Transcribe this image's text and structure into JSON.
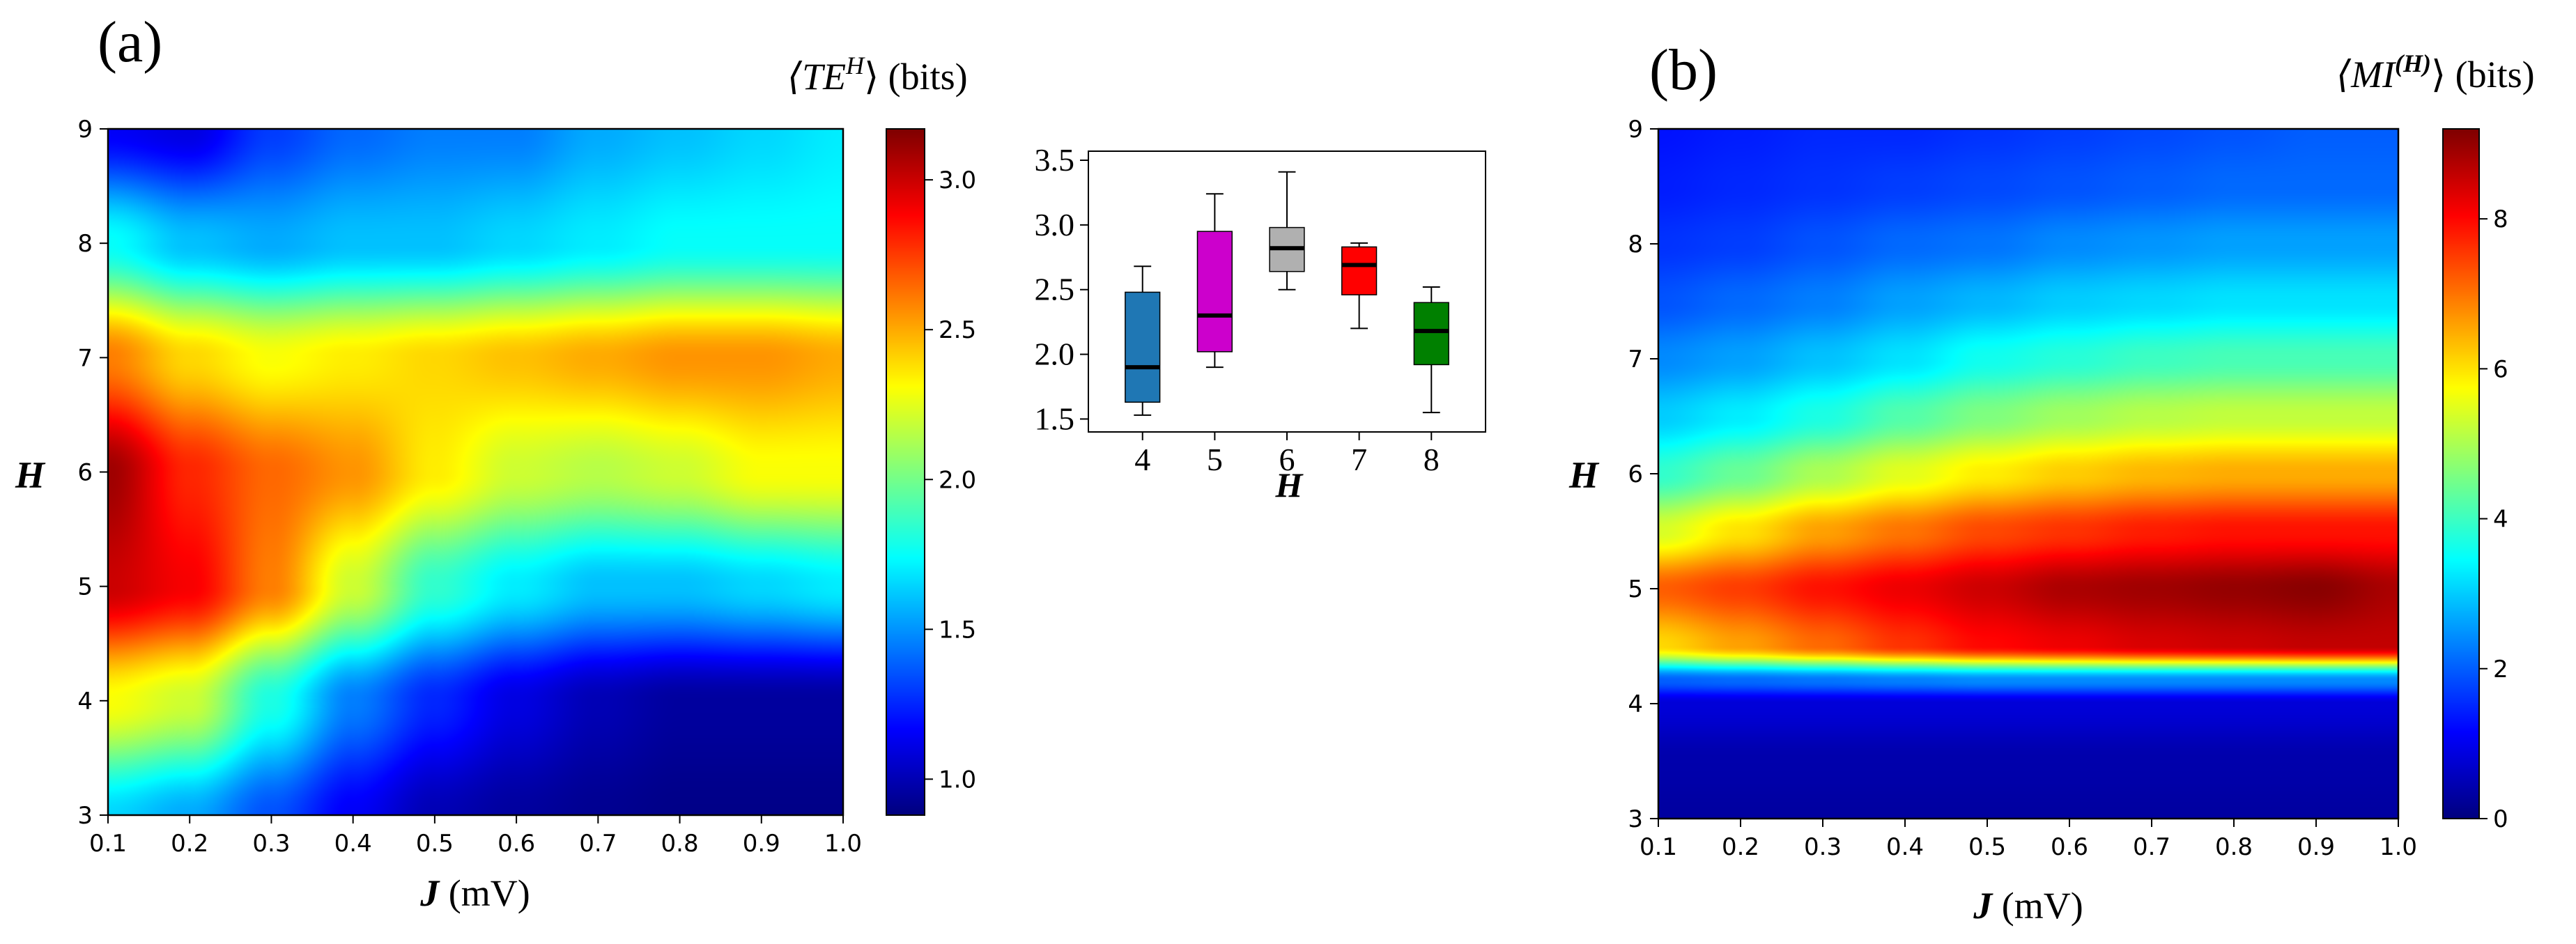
{
  "colors": {
    "jet": [
      "#00007f",
      "#0000ff",
      "#007fff",
      "#00ffff",
      "#7fff7f",
      "#ffff00",
      "#ff7f00",
      "#ff0000",
      "#7f0000"
    ],
    "box_fills": [
      "#1f77b4",
      "#cc00cc",
      "#b0b0b0",
      "#ff0000",
      "#008000"
    ]
  },
  "chart_data": [
    {
      "type": "heatmap",
      "panel_label": "(a)",
      "xlabel_var": "J",
      "xlabel_unit": " (mV)",
      "ylabel": "H",
      "x_ticks": [
        "0.1",
        "0.2",
        "0.3",
        "0.4",
        "0.5",
        "0.6",
        "0.7",
        "0.8",
        "0.9",
        "1.0"
      ],
      "y_ticks": [
        "3",
        "4",
        "5",
        "6",
        "7",
        "8",
        "9"
      ],
      "xlim": [
        0.1,
        1.0
      ],
      "ylim": [
        3,
        9
      ],
      "colorbar": {
        "label_main": "⟨TE",
        "label_sup": "H",
        "label_close": "⟩",
        "label_unit": " (bits)",
        "range": [
          0.88,
          3.17
        ],
        "ticks": [
          "1.0",
          "1.5",
          "2.0",
          "2.5",
          "3.0"
        ],
        "tick_values": [
          1.0,
          1.5,
          2.0,
          2.5,
          3.0
        ]
      },
      "grid_x": [
        0.1,
        0.2,
        0.3,
        0.4,
        0.5,
        0.6,
        0.7,
        0.8,
        0.9,
        1.0
      ],
      "grid_y": [
        3,
        4,
        5,
        6,
        7,
        8,
        9
      ],
      "values": [
        [
          1.65,
          1.55,
          1.35,
          1.15,
          1.0,
          0.95,
          0.92,
          0.9,
          0.9,
          0.9
        ],
        [
          2.3,
          2.2,
          1.8,
          1.45,
          1.25,
          1.1,
          1.0,
          0.95,
          0.95,
          0.95
        ],
        [
          3.0,
          2.9,
          2.6,
          2.2,
          1.85,
          1.7,
          1.6,
          1.6,
          1.65,
          1.7
        ],
        [
          3.1,
          2.8,
          2.65,
          2.55,
          2.35,
          2.2,
          2.15,
          2.2,
          2.3,
          2.3
        ],
        [
          2.6,
          2.4,
          2.3,
          2.35,
          2.4,
          2.45,
          2.5,
          2.55,
          2.55,
          2.5
        ],
        [
          1.75,
          1.6,
          1.55,
          1.6,
          1.6,
          1.65,
          1.7,
          1.75,
          1.75,
          1.75
        ],
        [
          1.15,
          1.1,
          1.3,
          1.4,
          1.45,
          1.45,
          1.55,
          1.6,
          1.65,
          1.7
        ]
      ]
    },
    {
      "type": "box",
      "xlabel": "H",
      "categories": [
        "4",
        "5",
        "6",
        "7",
        "8"
      ],
      "y_ticks": [
        "1.5",
        "2.0",
        "2.5",
        "3.0",
        "3.5"
      ],
      "ylim": [
        1.4,
        3.57
      ],
      "boxes": [
        {
          "min": 1.53,
          "q1": 1.63,
          "median": 1.9,
          "q3": 2.48,
          "max": 2.68
        },
        {
          "min": 1.9,
          "q1": 2.02,
          "median": 2.3,
          "q3": 2.95,
          "max": 3.24
        },
        {
          "min": 2.5,
          "q1": 2.64,
          "median": 2.82,
          "q3": 2.98,
          "max": 3.41
        },
        {
          "min": 2.2,
          "q1": 2.46,
          "median": 2.69,
          "q3": 2.83,
          "max": 2.86
        },
        {
          "min": 1.55,
          "q1": 1.92,
          "median": 2.18,
          "q3": 2.4,
          "max": 2.52
        }
      ]
    },
    {
      "type": "heatmap",
      "panel_label": "(b)",
      "xlabel_var": "J",
      "xlabel_unit": " (mV)",
      "ylabel": "H",
      "x_ticks": [
        "0.1",
        "0.2",
        "0.3",
        "0.4",
        "0.5",
        "0.6",
        "0.7",
        "0.8",
        "0.9",
        "1.0"
      ],
      "y_ticks": [
        "3",
        "4",
        "5",
        "6",
        "7",
        "8",
        "9"
      ],
      "xlim": [
        0.1,
        1.0
      ],
      "ylim": [
        3,
        9
      ],
      "colorbar": {
        "label_main": "⟨MI",
        "label_sup": "(H)",
        "label_close": "⟩",
        "label_unit": " (bits)",
        "range": [
          0,
          9.2
        ],
        "ticks": [
          "0",
          "2",
          "4",
          "6",
          "8"
        ],
        "tick_values": [
          0,
          2,
          4,
          6,
          8
        ]
      },
      "grid_x": [
        0.1,
        0.2,
        0.3,
        0.4,
        0.5,
        0.6,
        0.7,
        0.8,
        0.9,
        1.0
      ],
      "grid_y": [
        3,
        3.5,
        4,
        4.2,
        4.5,
        5,
        5.5,
        6,
        6.5,
        7,
        7.5,
        8,
        8.5,
        9
      ],
      "values": [
        [
          0.3,
          0.3,
          0.3,
          0.3,
          0.3,
          0.3,
          0.3,
          0.3,
          0.3,
          0.3
        ],
        [
          0.4,
          0.4,
          0.4,
          0.4,
          0.4,
          0.4,
          0.4,
          0.4,
          0.4,
          0.4
        ],
        [
          0.8,
          0.8,
          0.8,
          0.8,
          0.8,
          0.8,
          0.8,
          0.8,
          0.8,
          0.8
        ],
        [
          2.0,
          2.1,
          2.2,
          2.3,
          2.4,
          2.4,
          2.4,
          2.4,
          2.4,
          2.4
        ],
        [
          6.1,
          6.6,
          7.1,
          7.6,
          8.0,
          8.2,
          8.4,
          8.5,
          8.6,
          8.6
        ],
        [
          7.2,
          7.5,
          7.9,
          8.2,
          8.5,
          8.8,
          8.9,
          9.0,
          9.1,
          8.8
        ],
        [
          5.4,
          6.0,
          6.6,
          7.0,
          7.4,
          7.6,
          7.8,
          7.9,
          7.9,
          7.9
        ],
        [
          3.9,
          4.4,
          5.0,
          5.5,
          5.9,
          6.2,
          6.4,
          6.5,
          6.5,
          6.5
        ],
        [
          3.0,
          3.3,
          3.7,
          4.2,
          4.6,
          4.9,
          5.1,
          5.2,
          5.2,
          5.2
        ],
        [
          2.4,
          2.6,
          2.9,
          3.2,
          3.6,
          3.8,
          4.0,
          4.1,
          4.1,
          4.1
        ],
        [
          1.9,
          2.1,
          2.3,
          2.6,
          2.8,
          3.0,
          3.1,
          3.2,
          3.2,
          3.2
        ],
        [
          1.6,
          1.7,
          1.9,
          2.1,
          2.2,
          2.4,
          2.5,
          2.6,
          2.6,
          2.6
        ],
        [
          1.4,
          1.5,
          1.6,
          1.7,
          1.8,
          1.9,
          2.0,
          2.1,
          2.1,
          2.1
        ],
        [
          1.3,
          1.4,
          1.5,
          1.5,
          1.6,
          1.7,
          1.8,
          1.9,
          2.0,
          2.0
        ]
      ]
    }
  ]
}
